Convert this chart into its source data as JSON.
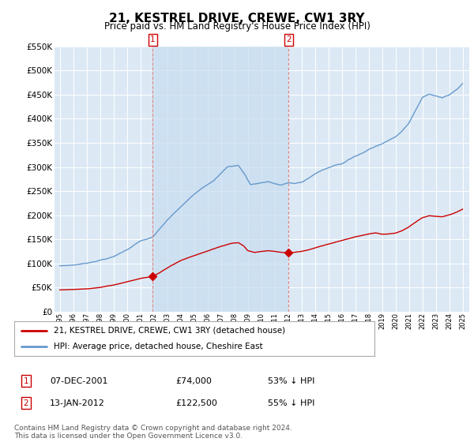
{
  "title": "21, KESTREL DRIVE, CREWE, CW1 3RY",
  "subtitle": "Price paid vs. HM Land Registry's House Price Index (HPI)",
  "legend_line1": "21, KESTREL DRIVE, CREWE, CW1 3RY (detached house)",
  "legend_line2": "HPI: Average price, detached house, Cheshire East",
  "table_rows": [
    {
      "num": "1",
      "date": "07-DEC-2001",
      "price": "£74,000",
      "pct": "53% ↓ HPI"
    },
    {
      "num": "2",
      "date": "13-JAN-2012",
      "price": "£122,500",
      "pct": "55% ↓ HPI"
    }
  ],
  "footnote": "Contains HM Land Registry data © Crown copyright and database right 2024.\nThis data is licensed under the Open Government Licence v3.0.",
  "ylim": [
    0,
    550000
  ],
  "yticks": [
    0,
    50000,
    100000,
    150000,
    200000,
    250000,
    300000,
    350000,
    400000,
    450000,
    500000,
    550000
  ],
  "background_color": "#dce9f5",
  "grid_color": "#ffffff",
  "red_color": "#cc0000",
  "blue_color": "#6699cc",
  "sale1_year": 2001.92,
  "sale1_value": 74000,
  "sale2_year": 2012.04,
  "sale2_value": 122500,
  "vline_color": "#dd8888",
  "shade_color": "#c8ddf0"
}
